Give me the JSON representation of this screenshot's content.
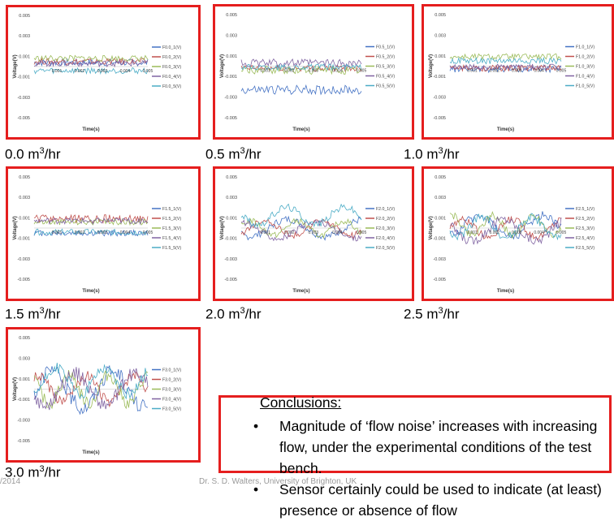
{
  "chart_data": [
    {
      "type": "line",
      "flow_label": {
        "value": "0.0 m",
        "unit_sup": "3",
        "unit_rest": "/hr"
      },
      "ylabel": "Voltage(V)",
      "xlabel": "Time(s)",
      "ylim": [
        -0.005,
        0.005
      ],
      "y_ticks": [
        "0.005",
        "0.003",
        "0.001",
        "-0.001",
        "-0.003",
        "-0.005"
      ],
      "x_ticks": [
        "0",
        "0.001",
        "0.002",
        "0.003",
        "0.004",
        "0.005"
      ],
      "series": [
        {
          "name": "F0.0_1(V)",
          "color": "#4472c4",
          "level": 0.0004,
          "amp": 0.00035
        },
        {
          "name": "F0.0_2(V)",
          "color": "#c0504d",
          "level": 0.0005,
          "amp": 0.0003
        },
        {
          "name": "F0.0_3(V)",
          "color": "#9bbb59",
          "level": 0.0008,
          "amp": 0.0003
        },
        {
          "name": "F0.0_4(V)",
          "color": "#8064a2",
          "level": 0.0003,
          "amp": 0.0003
        },
        {
          "name": "F0.0_5(V)",
          "color": "#4bacc6",
          "level": -0.0004,
          "amp": 0.0003
        }
      ]
    },
    {
      "type": "line",
      "flow_label": {
        "value": "0.5 m",
        "unit_sup": "3",
        "unit_rest": "/hr"
      },
      "ylabel": "Voltage(V)",
      "xlabel": "Time(s)",
      "ylim": [
        -0.005,
        0.005
      ],
      "y_ticks": [
        "0.005",
        "0.003",
        "0.001",
        "-0.001",
        "-0.003",
        "-0.005"
      ],
      "x_ticks": [
        "0",
        "0.001",
        "0.002",
        "0.003",
        "0.004",
        "0.005"
      ],
      "series": [
        {
          "name": "F0.5_1(V)",
          "color": "#4472c4",
          "level": -0.0023,
          "amp": 0.00045
        },
        {
          "name": "F0.5_2(V)",
          "color": "#c0504d",
          "level": -0.0002,
          "amp": 0.0003
        },
        {
          "name": "F0.5_3(V)",
          "color": "#9bbb59",
          "level": -0.0004,
          "amp": 0.0004
        },
        {
          "name": "F0.5_4(V)",
          "color": "#8064a2",
          "level": 0.0003,
          "amp": 0.0004
        },
        {
          "name": "F0.5_5(V)",
          "color": "#4bacc6",
          "level": -0.0001,
          "amp": 0.0003
        }
      ]
    },
    {
      "type": "line",
      "flow_label": {
        "value": "1.0 m",
        "unit_sup": "3",
        "unit_rest": "/hr"
      },
      "ylabel": "Voltage(V)",
      "xlabel": "Time(s)",
      "ylim": [
        -0.005,
        0.005
      ],
      "y_ticks": [
        "0.005",
        "0.003",
        "0.001",
        "-0.001",
        "-0.003",
        "-0.005"
      ],
      "x_ticks": [
        "0",
        "0.001",
        "0.002",
        "0.003",
        "0.004",
        "0.005"
      ],
      "series": [
        {
          "name": "F1.0_1(V)",
          "color": "#4472c4",
          "level": -0.0003,
          "amp": 0.0003
        },
        {
          "name": "F1.0_2(V)",
          "color": "#c0504d",
          "level": -0.0002,
          "amp": 0.0003
        },
        {
          "name": "F1.0_3(V)",
          "color": "#9bbb59",
          "level": 0.0009,
          "amp": 0.0003
        },
        {
          "name": "F1.0_4(V)",
          "color": "#8064a2",
          "level": -0.0001,
          "amp": 0.0003
        },
        {
          "name": "F1.0_5(V)",
          "color": "#4bacc6",
          "level": 0.0005,
          "amp": 0.0003
        }
      ]
    },
    {
      "type": "line",
      "flow_label": {
        "value": "1.5 m",
        "unit_sup": "3",
        "unit_rest": "/hr"
      },
      "ylabel": "Voltage(V)",
      "xlabel": "Time(s)",
      "ylim": [
        -0.005,
        0.005
      ],
      "y_ticks": [
        "0.005",
        "0.003",
        "0.001",
        "-0.001",
        "-0.003",
        "-0.005"
      ],
      "x_ticks": [
        "0",
        "0.001",
        "0.002",
        "0.003",
        "0.004",
        "0.005"
      ],
      "series": [
        {
          "name": "F1.5_1(V)",
          "color": "#4472c4",
          "level": -0.0005,
          "amp": 0.0003
        },
        {
          "name": "F1.5_2(V)",
          "color": "#c0504d",
          "level": 0.0009,
          "amp": 0.0004
        },
        {
          "name": "F1.5_3(V)",
          "color": "#9bbb59",
          "level": 0.0006,
          "amp": 0.0003
        },
        {
          "name": "F1.5_4(V)",
          "color": "#8064a2",
          "level": 0.0007,
          "amp": 0.0003
        },
        {
          "name": "F1.5_5(V)",
          "color": "#4bacc6",
          "level": -0.0004,
          "amp": 0.0003
        }
      ]
    },
    {
      "type": "line",
      "flow_label": {
        "value": "2.0 m",
        "unit_sup": "3",
        "unit_rest": "/hr"
      },
      "ylabel": "Voltage(V)",
      "xlabel": "Time(s)",
      "ylim": [
        -0.005,
        0.005
      ],
      "y_ticks": [
        "0.005",
        "0.003",
        "0.001",
        "-0.001",
        "-0.003",
        "-0.005"
      ],
      "x_ticks": [
        "0",
        "0.001",
        "0.002",
        "0.003",
        "0.004",
        "0.005"
      ],
      "series": [
        {
          "name": "F2.0_1(V)",
          "color": "#4472c4",
          "level": 0.0,
          "amp": 0.0012
        },
        {
          "name": "F2.0_2(V)",
          "color": "#c0504d",
          "level": 0.0,
          "amp": 0.001
        },
        {
          "name": "F2.0_3(V)",
          "color": "#9bbb59",
          "level": 0.0,
          "amp": 0.001
        },
        {
          "name": "F2.0_4(V)",
          "color": "#8064a2",
          "level": -0.0002,
          "amp": 0.0011
        },
        {
          "name": "F2.0_5(V)",
          "color": "#4bacc6",
          "level": 0.0012,
          "amp": 0.0012
        }
      ]
    },
    {
      "type": "line",
      "flow_label": {
        "value": "2.5 m",
        "unit_sup": "3",
        "unit_rest": "/hr"
      },
      "ylabel": "Voltage(V)",
      "xlabel": "Time(s)",
      "ylim": [
        -0.005,
        0.005
      ],
      "y_ticks": [
        "0.005",
        "0.003",
        "0.001",
        "-0.001",
        "-0.003",
        "-0.005"
      ],
      "x_ticks": [
        "0",
        "0.001",
        "0.002",
        "0.003",
        "0.004",
        "0.005"
      ],
      "series": [
        {
          "name": "F2.5_1(V)",
          "color": "#4472c4",
          "level": 0.0002,
          "amp": 0.0015
        },
        {
          "name": "F2.5_2(V)",
          "color": "#c0504d",
          "level": 0.0,
          "amp": 0.0012
        },
        {
          "name": "F2.5_3(V)",
          "color": "#9bbb59",
          "level": 0.0003,
          "amp": 0.0013
        },
        {
          "name": "F2.5_4(V)",
          "color": "#8064a2",
          "level": -0.0002,
          "amp": 0.0015
        },
        {
          "name": "F2.5_5(V)",
          "color": "#4bacc6",
          "level": 0.0001,
          "amp": 0.0014
        }
      ]
    },
    {
      "type": "line",
      "flow_label": {
        "value": "3.0 m",
        "unit_sup": "3",
        "unit_rest": "/hr"
      },
      "ylabel": "Voltage(V)",
      "xlabel": "Time(s)",
      "ylim": [
        -0.005,
        0.005
      ],
      "y_ticks": [
        "0.005",
        "0.003",
        "0.001",
        "-0.001",
        "-0.003",
        "-0.005"
      ],
      "x_ticks": [],
      "series": [
        {
          "name": "F3.0_1(V)",
          "color": "#4472c4",
          "level": 0.0,
          "amp": 0.0025
        },
        {
          "name": "F3.0_2(V)",
          "color": "#c0504d",
          "level": 0.0,
          "amp": 0.0018
        },
        {
          "name": "F3.0_3(V)",
          "color": "#9bbb59",
          "level": 0.0,
          "amp": 0.002
        },
        {
          "name": "F3.0_4(V)",
          "color": "#8064a2",
          "level": 0.0,
          "amp": 0.0022
        },
        {
          "name": "F3.0_5(V)",
          "color": "#4bacc6",
          "level": 0.0008,
          "amp": 0.0018
        }
      ]
    }
  ],
  "conclusions": {
    "title": "Conclusions:",
    "bullets": [
      "Magnitude of ‘flow noise’ increases with increasing flow, under the experimental conditions of the test bench.",
      "Sensor certainly could be used to indicate (at least) presence or absence of flow"
    ]
  },
  "footer": {
    "date": "/2014",
    "author": "Dr. S. D. Walters, University of Brighton, UK"
  },
  "colors": {
    "frame": "#e51e1e"
  }
}
